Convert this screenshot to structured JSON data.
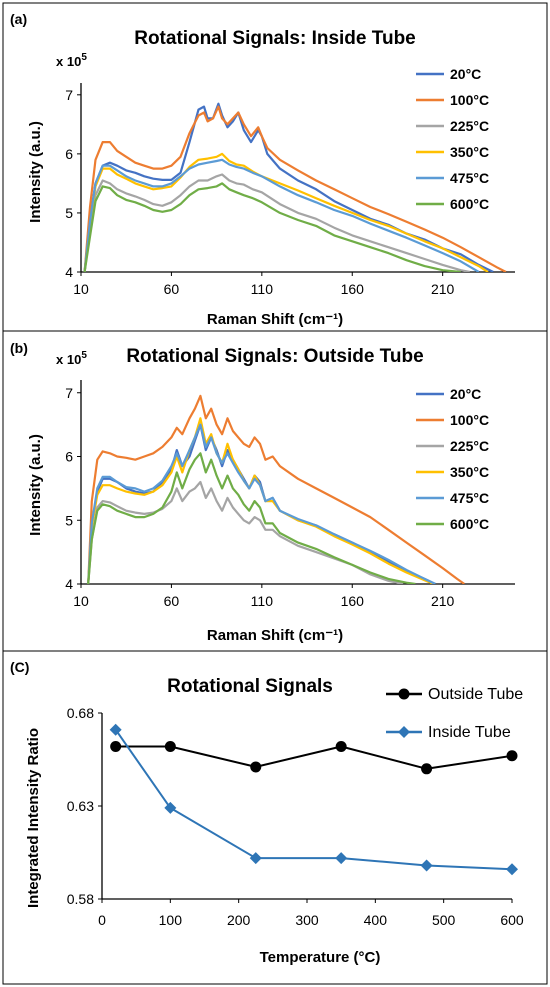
{
  "chart_data": [
    {
      "type": "line",
      "panel_label": "(a)",
      "title": "Rotational Signals: Inside Tube",
      "xlabel": "Raman Shift (cm⁻¹)",
      "ylabel": "Intensity (a.u.)",
      "multiplier": "x 10",
      "multiplier_exp": "5",
      "xlim": [
        10,
        250
      ],
      "ylim": [
        4,
        7.2
      ],
      "x_ticks": [
        "10",
        "60",
        "110",
        "160",
        "210"
      ],
      "y_ticks": [
        "4",
        "5",
        "6",
        "7"
      ],
      "legend_position": "right",
      "series": [
        {
          "name": "20°C",
          "color": "#4472C4",
          "x": [
            12,
            15,
            18,
            22,
            26,
            30,
            35,
            40,
            45,
            50,
            55,
            60,
            65,
            70,
            75,
            78,
            80,
            83,
            86,
            88,
            91,
            94,
            97,
            100,
            104,
            108,
            110,
            113,
            120,
            130,
            140,
            150,
            160,
            170,
            180,
            190,
            200,
            210,
            220,
            230,
            238
          ],
          "y": [
            4,
            4.9,
            5.5,
            5.8,
            5.85,
            5.8,
            5.72,
            5.68,
            5.62,
            5.58,
            5.56,
            5.56,
            5.68,
            6.2,
            6.75,
            6.8,
            6.6,
            6.6,
            6.85,
            6.65,
            6.45,
            6.55,
            6.7,
            6.4,
            6.2,
            6.4,
            6.3,
            6.0,
            5.75,
            5.55,
            5.4,
            5.2,
            5.05,
            4.9,
            4.8,
            4.65,
            4.55,
            4.4,
            4.3,
            4.12,
            4.0
          ]
        },
        {
          "name": "100°C",
          "color": "#ED7D31",
          "x": [
            12,
            15,
            18,
            22,
            26,
            30,
            35,
            40,
            45,
            50,
            55,
            60,
            65,
            70,
            75,
            78,
            80,
            83,
            86,
            88,
            91,
            94,
            97,
            100,
            104,
            108,
            110,
            113,
            120,
            130,
            140,
            150,
            160,
            170,
            180,
            190,
            200,
            210,
            220,
            230,
            240,
            245
          ],
          "y": [
            4,
            5.1,
            5.9,
            6.2,
            6.2,
            6.05,
            5.95,
            5.85,
            5.8,
            5.75,
            5.75,
            5.8,
            5.95,
            6.35,
            6.65,
            6.7,
            6.55,
            6.6,
            6.8,
            6.6,
            6.5,
            6.6,
            6.7,
            6.5,
            6.3,
            6.45,
            6.3,
            6.1,
            5.9,
            5.72,
            5.55,
            5.4,
            5.25,
            5.1,
            4.98,
            4.85,
            4.72,
            4.58,
            4.42,
            4.25,
            4.08,
            4.0
          ]
        },
        {
          "name": "225°C",
          "color": "#A5A5A5",
          "x": [
            12,
            15,
            18,
            22,
            26,
            30,
            35,
            40,
            45,
            50,
            55,
            60,
            65,
            70,
            75,
            80,
            85,
            88,
            92,
            96,
            100,
            105,
            110,
            120,
            130,
            140,
            150,
            160,
            170,
            180,
            190,
            200,
            210,
            220,
            225
          ],
          "y": [
            4,
            4.7,
            5.3,
            5.55,
            5.5,
            5.4,
            5.33,
            5.28,
            5.22,
            5.15,
            5.12,
            5.18,
            5.3,
            5.45,
            5.55,
            5.55,
            5.62,
            5.65,
            5.55,
            5.5,
            5.48,
            5.4,
            5.35,
            5.15,
            5.0,
            4.9,
            4.75,
            4.62,
            4.52,
            4.42,
            4.32,
            4.22,
            4.12,
            4.03,
            4.0
          ]
        },
        {
          "name": "350°C",
          "color": "#FFC000",
          "x": [
            12,
            15,
            18,
            22,
            26,
            30,
            35,
            40,
            45,
            50,
            55,
            60,
            65,
            70,
            75,
            80,
            85,
            88,
            92,
            96,
            100,
            105,
            110,
            120,
            130,
            140,
            150,
            160,
            170,
            180,
            190,
            200,
            210,
            220,
            230,
            235
          ],
          "y": [
            4,
            4.8,
            5.45,
            5.75,
            5.75,
            5.65,
            5.58,
            5.5,
            5.45,
            5.4,
            5.42,
            5.45,
            5.6,
            5.78,
            5.9,
            5.92,
            5.95,
            6.0,
            5.88,
            5.82,
            5.8,
            5.7,
            5.62,
            5.5,
            5.38,
            5.25,
            5.12,
            5.0,
            4.88,
            4.78,
            4.65,
            4.52,
            4.4,
            4.25,
            4.1,
            4.0
          ]
        },
        {
          "name": "475°C",
          "color": "#5B9BD5",
          "x": [
            12,
            15,
            18,
            22,
            26,
            30,
            35,
            40,
            45,
            50,
            55,
            60,
            65,
            70,
            75,
            80,
            85,
            88,
            92,
            96,
            100,
            105,
            110,
            120,
            130,
            140,
            150,
            160,
            170,
            180,
            190,
            200,
            210,
            220,
            230
          ],
          "y": [
            4,
            4.85,
            5.5,
            5.8,
            5.8,
            5.72,
            5.62,
            5.55,
            5.5,
            5.45,
            5.45,
            5.5,
            5.62,
            5.75,
            5.82,
            5.85,
            5.88,
            5.9,
            5.82,
            5.78,
            5.75,
            5.68,
            5.62,
            5.45,
            5.3,
            5.18,
            5.05,
            4.95,
            4.82,
            4.7,
            4.58,
            4.45,
            4.32,
            4.18,
            4.0
          ]
        },
        {
          "name": "600°C",
          "color": "#70AD47",
          "x": [
            12,
            15,
            18,
            22,
            26,
            30,
            35,
            40,
            45,
            50,
            55,
            60,
            65,
            70,
            75,
            80,
            85,
            88,
            92,
            96,
            100,
            105,
            110,
            120,
            130,
            140,
            150,
            160,
            170,
            180,
            190,
            200,
            210,
            220
          ],
          "y": [
            4,
            4.6,
            5.2,
            5.45,
            5.42,
            5.3,
            5.22,
            5.18,
            5.12,
            5.05,
            5.02,
            5.05,
            5.15,
            5.3,
            5.4,
            5.42,
            5.45,
            5.5,
            5.4,
            5.35,
            5.3,
            5.25,
            5.18,
            5.0,
            4.88,
            4.78,
            4.62,
            4.52,
            4.42,
            4.32,
            4.2,
            4.1,
            4.03,
            4.0
          ]
        }
      ]
    },
    {
      "type": "line",
      "panel_label": "(b)",
      "title": "Rotational Signals: Outside Tube",
      "xlabel": "Raman Shift (cm⁻¹)",
      "ylabel": "Intensity (a.u.)",
      "multiplier": "x 10",
      "multiplier_exp": "5",
      "xlim": [
        10,
        250
      ],
      "ylim": [
        4,
        7.2
      ],
      "x_ticks": [
        "10",
        "60",
        "110",
        "160",
        "210"
      ],
      "y_ticks": [
        "4",
        "5",
        "6",
        "7"
      ],
      "legend_position": "right",
      "series": [
        {
          "name": "20°C",
          "color": "#4472C4",
          "x": [
            14,
            16,
            19,
            22,
            26,
            30,
            35,
            40,
            45,
            50,
            55,
            60,
            63,
            66,
            70,
            73,
            76,
            79,
            82,
            85,
            88,
            91,
            94,
            97,
            100,
            103,
            106,
            109,
            112,
            116,
            120,
            130,
            140,
            150,
            160,
            170,
            180,
            190,
            200,
            206
          ],
          "y": [
            4,
            4.9,
            5.45,
            5.65,
            5.65,
            5.6,
            5.5,
            5.45,
            5.42,
            5.45,
            5.6,
            5.8,
            6.1,
            5.85,
            6.0,
            6.25,
            6.5,
            6.1,
            6.3,
            6.1,
            5.85,
            6.1,
            5.95,
            5.8,
            5.65,
            5.5,
            5.7,
            5.6,
            5.3,
            5.35,
            5.15,
            5.0,
            4.92,
            4.78,
            4.65,
            4.5,
            4.35,
            4.2,
            4.08,
            4.0
          ]
        },
        {
          "name": "100°C",
          "color": "#ED7D31",
          "x": [
            14,
            16,
            19,
            22,
            26,
            30,
            35,
            40,
            45,
            50,
            55,
            60,
            63,
            66,
            70,
            73,
            76,
            79,
            82,
            85,
            88,
            91,
            94,
            97,
            100,
            103,
            106,
            109,
            112,
            116,
            120,
            130,
            140,
            150,
            160,
            170,
            180,
            190,
            200,
            210,
            218,
            222
          ],
          "y": [
            4,
            5.3,
            5.95,
            6.08,
            6.05,
            6.0,
            5.98,
            5.95,
            6.0,
            6.05,
            6.15,
            6.3,
            6.45,
            6.35,
            6.6,
            6.75,
            6.95,
            6.6,
            6.75,
            6.5,
            6.35,
            6.6,
            6.4,
            6.3,
            6.2,
            6.15,
            6.3,
            6.2,
            5.95,
            6.0,
            5.85,
            5.65,
            5.5,
            5.35,
            5.2,
            5.05,
            4.85,
            4.65,
            4.45,
            4.25,
            4.08,
            4.0
          ]
        },
        {
          "name": "225°C",
          "color": "#A5A5A5",
          "x": [
            14,
            16,
            19,
            22,
            26,
            30,
            35,
            40,
            45,
            50,
            55,
            60,
            63,
            66,
            70,
            73,
            76,
            79,
            82,
            85,
            88,
            91,
            94,
            97,
            100,
            103,
            106,
            109,
            112,
            116,
            120,
            130,
            140,
            150,
            160,
            170,
            180,
            188
          ],
          "y": [
            4,
            4.7,
            5.2,
            5.3,
            5.28,
            5.22,
            5.15,
            5.12,
            5.1,
            5.12,
            5.18,
            5.3,
            5.5,
            5.3,
            5.45,
            5.5,
            5.6,
            5.35,
            5.5,
            5.3,
            5.15,
            5.35,
            5.2,
            5.1,
            5.0,
            4.95,
            5.05,
            5.0,
            4.85,
            4.85,
            4.75,
            4.6,
            4.5,
            4.4,
            4.3,
            4.15,
            4.05,
            4.0
          ]
        },
        {
          "name": "350°C",
          "color": "#FFC000",
          "x": [
            14,
            16,
            19,
            22,
            26,
            30,
            35,
            40,
            45,
            50,
            55,
            60,
            63,
            66,
            70,
            73,
            76,
            79,
            82,
            85,
            88,
            91,
            94,
            97,
            100,
            103,
            106,
            109,
            112,
            116,
            120,
            130,
            140,
            150,
            160,
            170,
            180,
            190,
            200,
            205
          ],
          "y": [
            4,
            4.9,
            5.4,
            5.55,
            5.55,
            5.5,
            5.45,
            5.42,
            5.4,
            5.45,
            5.55,
            5.75,
            6.0,
            5.75,
            6.1,
            6.3,
            6.6,
            6.2,
            6.35,
            6.05,
            5.9,
            6.2,
            5.95,
            5.8,
            5.62,
            5.5,
            5.7,
            5.55,
            5.3,
            5.3,
            5.15,
            5.0,
            4.9,
            4.75,
            4.62,
            4.48,
            4.32,
            4.18,
            4.06,
            4.0
          ]
        },
        {
          "name": "475°C",
          "color": "#5B9BD5",
          "x": [
            14,
            16,
            19,
            22,
            26,
            30,
            35,
            40,
            45,
            50,
            55,
            60,
            63,
            66,
            70,
            73,
            76,
            79,
            82,
            85,
            88,
            91,
            94,
            97,
            100,
            103,
            106,
            109,
            112,
            116,
            120,
            130,
            140,
            150,
            160,
            170,
            180,
            190,
            200,
            206
          ],
          "y": [
            4,
            4.95,
            5.5,
            5.68,
            5.68,
            5.6,
            5.52,
            5.5,
            5.45,
            5.5,
            5.62,
            5.85,
            6.05,
            5.85,
            6.1,
            6.3,
            6.5,
            6.15,
            6.3,
            6.05,
            5.9,
            6.05,
            5.9,
            5.75,
            5.62,
            5.5,
            5.65,
            5.55,
            5.3,
            5.35,
            5.15,
            5.02,
            4.92,
            4.78,
            4.65,
            4.52,
            4.38,
            4.22,
            4.08,
            4.0
          ]
        },
        {
          "name": "600°C",
          "color": "#70AD47",
          "x": [
            14,
            16,
            19,
            22,
            26,
            30,
            35,
            40,
            45,
            50,
            55,
            60,
            63,
            66,
            70,
            73,
            76,
            79,
            82,
            85,
            88,
            91,
            94,
            97,
            100,
            103,
            106,
            109,
            112,
            116,
            120,
            130,
            140,
            150,
            160,
            170,
            180,
            190,
            195
          ],
          "y": [
            4,
            4.7,
            5.15,
            5.25,
            5.22,
            5.15,
            5.1,
            5.05,
            5.05,
            5.1,
            5.2,
            5.45,
            5.75,
            5.5,
            5.8,
            5.95,
            6.05,
            5.75,
            5.95,
            5.7,
            5.5,
            5.7,
            5.5,
            5.4,
            5.25,
            5.15,
            5.3,
            5.2,
            4.95,
            4.95,
            4.8,
            4.65,
            4.55,
            4.42,
            4.3,
            4.18,
            4.08,
            4.02,
            4.0
          ]
        }
      ]
    },
    {
      "type": "line",
      "panel_label": "(C)",
      "title": "Rotational Signals",
      "xlabel": "Temperature (°C)",
      "ylabel": "Integrated Intensity Ratio",
      "xlim": [
        0,
        600
      ],
      "ylim": [
        0.58,
        0.68
      ],
      "x_ticks": [
        "0",
        "100",
        "200",
        "300",
        "400",
        "500",
        "600"
      ],
      "y_ticks": [
        "0.58",
        "0.63",
        "0.68"
      ],
      "grid": false,
      "legend_position": "top-right",
      "series": [
        {
          "name": "Outside Tube",
          "color": "#000000",
          "marker": "circle",
          "x": [
            20,
            100,
            225,
            350,
            475,
            600
          ],
          "y": [
            0.662,
            0.662,
            0.651,
            0.662,
            0.65,
            0.657
          ]
        },
        {
          "name": "Inside Tube",
          "color": "#2E75B6",
          "marker": "diamond",
          "x": [
            20,
            100,
            225,
            350,
            475,
            600
          ],
          "y": [
            0.671,
            0.629,
            0.602,
            0.602,
            0.598,
            0.596
          ]
        }
      ]
    }
  ]
}
